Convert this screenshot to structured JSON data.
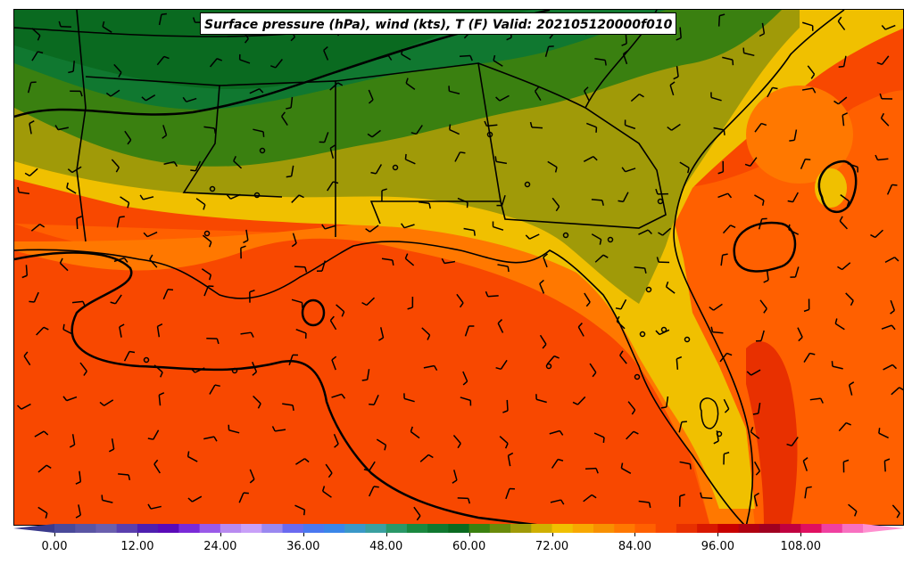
{
  "title": "Surface pressure (hPa), wind (kts), T (F) Valid: 202105120000f010",
  "colorbar": {
    "min": -3,
    "max": 120,
    "step": 3,
    "tick_labels": [
      "0.00",
      "12.00",
      "24.00",
      "36.00",
      "48.00",
      "60.00",
      "72.00",
      "84.00",
      "96.00",
      "108.00"
    ],
    "tick_values": [
      0,
      12,
      24,
      36,
      48,
      60,
      72,
      84,
      96,
      108
    ],
    "colors": [
      "#3a3a8c",
      "#4a4a9a",
      "#5a55a4",
      "#6a5fae",
      "#5a3fae",
      "#4e1fb0",
      "#5a0ab8",
      "#7a2ad8",
      "#9a5ae8",
      "#b88af0",
      "#c8a0f8",
      "#9a88f0",
      "#6a6af0",
      "#4a78f0",
      "#3a86e8",
      "#3a98c8",
      "#3aa0a0",
      "#2a9868",
      "#1a8840",
      "#107830",
      "#0a6a20",
      "#3a8010",
      "#6a8a0a",
      "#a09a08",
      "#d0b000",
      "#f0c000",
      "#f8a800",
      "#f89000",
      "#ff7800",
      "#ff6000",
      "#f84800",
      "#e83000",
      "#d81800",
      "#c80000",
      "#b00010",
      "#a00020",
      "#c00040",
      "#e01060",
      "#f040a0",
      "#f870c0",
      "#ff90d0"
    ],
    "extend": "both"
  },
  "map": {
    "region": "Southeastern United States and Gulf of Mexico",
    "fill_colors": {
      "dark_green": "#0a6a20",
      "green": "#107830",
      "olive": "#3a8010",
      "yellow_olive": "#a09a08",
      "yellow": "#f0c000",
      "orange_light": "#f8a800",
      "orange": "#ff7800",
      "orange_dark": "#ff6000",
      "red_orange": "#f84800",
      "red": "#e83000"
    },
    "line_color": "#000000"
  }
}
